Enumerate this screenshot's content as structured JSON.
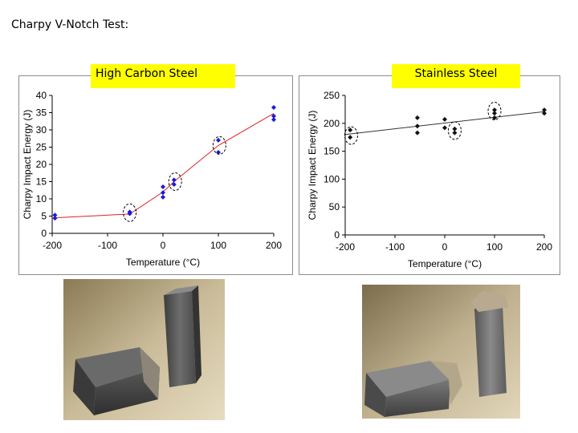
{
  "page": {
    "title": "Charpy V-Notch Test:"
  },
  "labels": {
    "left": "High Carbon Steel",
    "right": "Stainless Steel"
  },
  "chart_data": [
    {
      "type": "scatter",
      "title": "High Carbon Steel",
      "xlabel": "Temperature (°C)",
      "ylabel": "Charpy Impact Energy (J)",
      "xlim": [
        -200,
        200
      ],
      "ylim": [
        0,
        40
      ],
      "xticks": [
        "-200",
        "-100",
        "0",
        "100",
        "200"
      ],
      "yticks": [
        "0",
        "5",
        "10",
        "15",
        "20",
        "25",
        "30",
        "35",
        "40"
      ],
      "marker_color": "#1a1ad6",
      "line_color": "#e02020",
      "points": [
        {
          "x": -195,
          "y": 5.3
        },
        {
          "x": -195,
          "y": 4.4
        },
        {
          "x": -60,
          "y": 6.2
        },
        {
          "x": -60,
          "y": 5.7
        },
        {
          "x": 0,
          "y": 13.5
        },
        {
          "x": 0,
          "y": 11.8
        },
        {
          "x": 0,
          "y": 10.5
        },
        {
          "x": 20,
          "y": 15.5
        },
        {
          "x": 20,
          "y": 14.2
        },
        {
          "x": 100,
          "y": 27.0
        },
        {
          "x": 100,
          "y": 23.5
        },
        {
          "x": 200,
          "y": 36.5
        },
        {
          "x": 200,
          "y": 34.0
        },
        {
          "x": 200,
          "y": 33.0
        }
      ],
      "trend": [
        {
          "x": -200,
          "y": 4.5
        },
        {
          "x": -60,
          "y": 5.6
        },
        {
          "x": 0,
          "y": 12.0
        },
        {
          "x": 20,
          "y": 15.0
        },
        {
          "x": 100,
          "y": 25.5
        },
        {
          "x": 200,
          "y": 34.8
        }
      ],
      "circled": [
        {
          "x": -60,
          "y": 6.0
        },
        {
          "x": 22,
          "y": 15.0
        },
        {
          "x": 102,
          "y": 25.5
        }
      ]
    },
    {
      "type": "scatter",
      "title": "Stainless Steel",
      "xlabel": "Temperature (°C)",
      "ylabel": "Charpy Impact Energy (J)",
      "xlim": [
        -200,
        200
      ],
      "ylim": [
        0,
        250
      ],
      "xticks": [
        "-200",
        "-100",
        "0",
        "100",
        "200"
      ],
      "yticks": [
        "0",
        "50",
        "100",
        "150",
        "200",
        "250"
      ],
      "marker_color": "#111111",
      "line_color": "#333333",
      "points": [
        {
          "x": -190,
          "y": 188
        },
        {
          "x": -190,
          "y": 175
        },
        {
          "x": -55,
          "y": 210
        },
        {
          "x": -55,
          "y": 195
        },
        {
          "x": -55,
          "y": 183
        },
        {
          "x": 0,
          "y": 207
        },
        {
          "x": 0,
          "y": 192
        },
        {
          "x": 20,
          "y": 190
        },
        {
          "x": 20,
          "y": 183
        },
        {
          "x": 100,
          "y": 224
        },
        {
          "x": 100,
          "y": 218
        },
        {
          "x": 100,
          "y": 210
        },
        {
          "x": 200,
          "y": 224
        },
        {
          "x": 200,
          "y": 218
        }
      ],
      "trend": [
        {
          "x": -200,
          "y": 180
        },
        {
          "x": 200,
          "y": 221
        }
      ],
      "circled": [
        {
          "x": -188,
          "y": 178
        },
        {
          "x": 20,
          "y": 187
        },
        {
          "x": 100,
          "y": 222
        }
      ]
    }
  ]
}
